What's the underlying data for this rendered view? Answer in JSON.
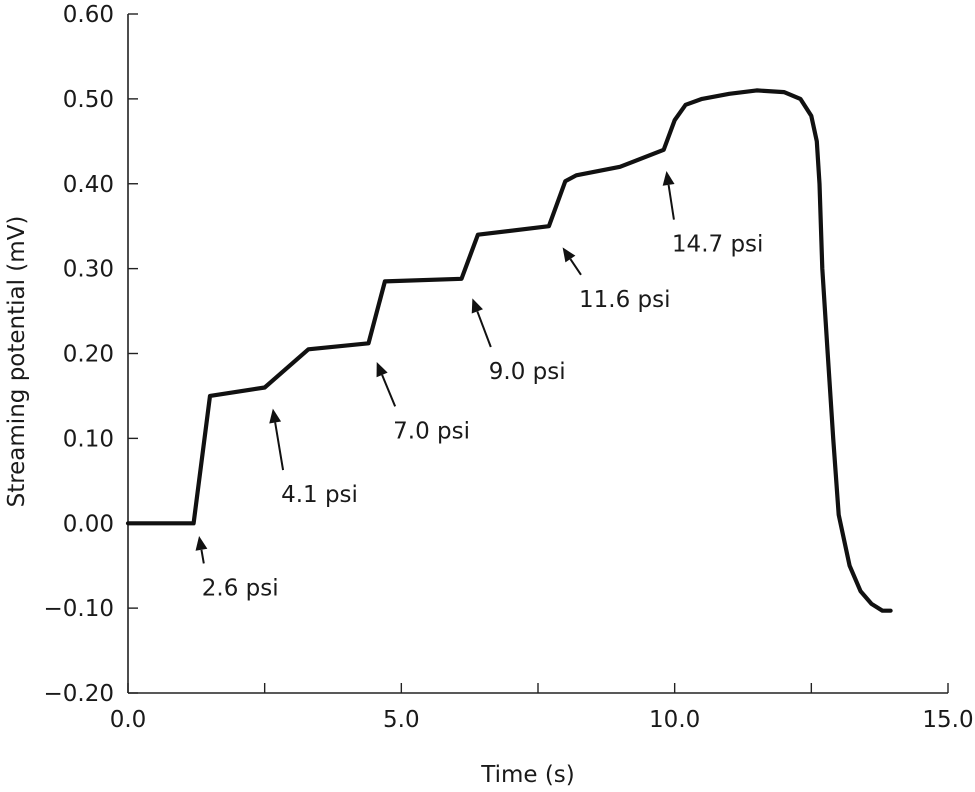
{
  "chart_data": {
    "type": "line",
    "title": "",
    "xlabel": "Time (s)",
    "ylabel": "Streaming potential (mV)",
    "xlim": [
      0,
      15
    ],
    "ylim": [
      -0.2,
      0.6
    ],
    "x_ticks": [
      0,
      2.5,
      5,
      7.5,
      10,
      12.5,
      15
    ],
    "x_tick_labels": [
      "0.0",
      "",
      "5.0",
      "",
      "10.0",
      "",
      "15.0"
    ],
    "y_ticks": [
      0.6,
      0.5,
      0.4,
      0.3,
      0.2,
      0.1,
      0,
      -0.1,
      -0.2
    ],
    "y_tick_labels": [
      "0.60",
      "0.50",
      "0.40",
      "0.30",
      "0.20",
      "0.10",
      "0.00",
      "−0.10",
      "−0.20"
    ],
    "grid": false,
    "legend": "none",
    "series": [
      {
        "color": "#111111",
        "x": [
          0,
          1.2,
          1.5,
          2.5,
          3.3,
          4.4,
          4.7,
          6.1,
          6.4,
          7.7,
          8.0,
          8.2,
          9.0,
          9.8,
          10.0,
          10.2,
          10.5,
          11.0,
          11.5,
          12.0,
          12.3,
          12.5,
          12.6,
          12.65,
          12.7,
          12.8,
          12.9,
          13.0,
          13.2,
          13.4,
          13.6,
          13.8,
          13.95
        ],
        "y": [
          0.0,
          0.0,
          0.15,
          0.16,
          0.205,
          0.212,
          0.285,
          0.288,
          0.34,
          0.35,
          0.403,
          0.41,
          0.42,
          0.44,
          0.475,
          0.493,
          0.5,
          0.506,
          0.51,
          0.508,
          0.5,
          0.48,
          0.45,
          0.4,
          0.3,
          0.2,
          0.1,
          0.01,
          -0.05,
          -0.08,
          -0.095,
          -0.103,
          -0.103
        ]
      }
    ],
    "annotations": [
      {
        "text": "2.6 psi",
        "x": 1.35,
        "y": -0.085,
        "arrow_to": [
          1.3,
          -0.015
        ]
      },
      {
        "text": "4.1 psi",
        "x": 2.8,
        "y": 0.025,
        "arrow_to": [
          2.65,
          0.135
        ]
      },
      {
        "text": "7.0 psi",
        "x": 4.85,
        "y": 0.1,
        "arrow_to": [
          4.55,
          0.19
        ]
      },
      {
        "text": "9.0 psi",
        "x": 6.6,
        "y": 0.17,
        "arrow_to": [
          6.3,
          0.265
        ]
      },
      {
        "text": "11.6 psi",
        "x": 8.25,
        "y": 0.255,
        "arrow_to": [
          7.95,
          0.325
        ]
      },
      {
        "text": "14.7 psi",
        "x": 9.95,
        "y": 0.32,
        "arrow_to": [
          9.85,
          0.415
        ]
      }
    ]
  }
}
